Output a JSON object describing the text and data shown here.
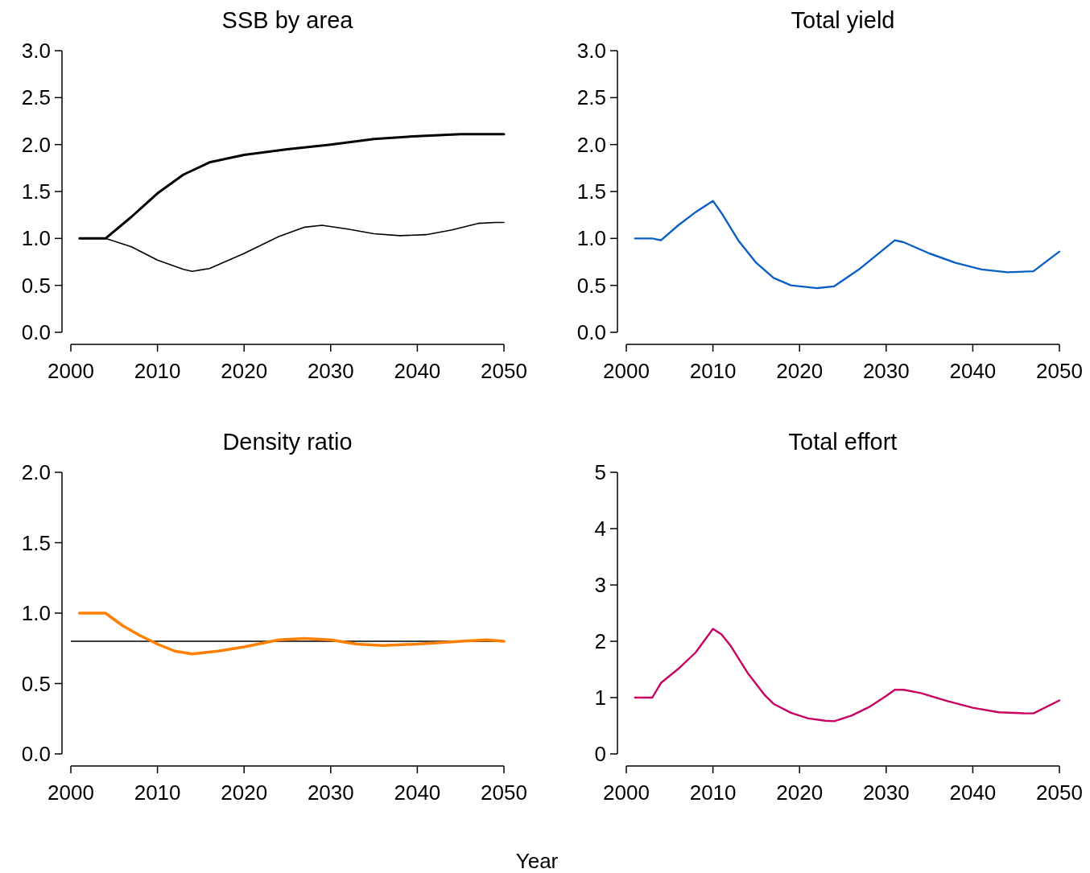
{
  "chart_data": [
    {
      "type": "line",
      "title": "SSB by area",
      "xlim": [
        2000,
        2050
      ],
      "xticks": [
        2000,
        2010,
        2020,
        2030,
        2040,
        2050
      ],
      "ylim": [
        0,
        3
      ],
      "yticks": [
        {
          "value": 0,
          "label": "0.0"
        },
        {
          "value": 0.5,
          "label": "0.5"
        },
        {
          "value": 1,
          "label": "1.0"
        },
        {
          "value": 1.5,
          "label": "1.5"
        },
        {
          "value": 2,
          "label": "2.0"
        },
        {
          "value": 2.5,
          "label": "2.5"
        },
        {
          "value": 3,
          "label": "3.0"
        }
      ],
      "series": [
        {
          "color": "#000000",
          "x": [
            2001,
            2004,
            2007,
            2010,
            2013,
            2016,
            2020,
            2025,
            2030,
            2035,
            2040,
            2045,
            2050
          ],
          "values": [
            1.0,
            1.0,
            1.23,
            1.48,
            1.68,
            1.81,
            1.89,
            1.95,
            2.0,
            2.06,
            2.09,
            2.11,
            2.11
          ]
        },
        {
          "color": "#000000",
          "x": [
            2001,
            2004,
            2007,
            2010,
            2013,
            2014,
            2016,
            2020,
            2024,
            2027,
            2029,
            2032,
            2035,
            2038,
            2041,
            2044,
            2047,
            2049,
            2050
          ],
          "values": [
            1.0,
            1.0,
            0.91,
            0.77,
            0.67,
            0.65,
            0.68,
            0.84,
            1.02,
            1.12,
            1.14,
            1.1,
            1.05,
            1.03,
            1.04,
            1.09,
            1.16,
            1.17,
            1.17
          ]
        }
      ]
    },
    {
      "type": "line",
      "title": "Total yield",
      "xlim": [
        2000,
        2050
      ],
      "xticks": [
        2000,
        2010,
        2020,
        2030,
        2040,
        2050
      ],
      "ylim": [
        0,
        3
      ],
      "yticks": [
        {
          "value": 0,
          "label": "0.0"
        },
        {
          "value": 0.5,
          "label": "0.5"
        },
        {
          "value": 1,
          "label": "1.0"
        },
        {
          "value": 1.5,
          "label": "1.5"
        },
        {
          "value": 2,
          "label": "2.0"
        },
        {
          "value": 2.5,
          "label": "2.5"
        },
        {
          "value": 3,
          "label": "3.0"
        }
      ],
      "series": [
        {
          "color": "#0a5fc4",
          "x": [
            2001,
            2003,
            2004,
            2006,
            2008,
            2010,
            2011,
            2013,
            2015,
            2017,
            2019,
            2022,
            2024,
            2027,
            2031,
            2032,
            2035,
            2038,
            2041,
            2044,
            2047,
            2050
          ],
          "values": [
            1.0,
            1.0,
            0.98,
            1.14,
            1.28,
            1.4,
            1.27,
            0.97,
            0.74,
            0.58,
            0.5,
            0.47,
            0.49,
            0.68,
            0.98,
            0.96,
            0.84,
            0.74,
            0.67,
            0.64,
            0.65,
            0.86
          ]
        }
      ]
    },
    {
      "type": "line",
      "title": "Density ratio",
      "xlim": [
        2000,
        2050
      ],
      "xticks": [
        2000,
        2010,
        2020,
        2030,
        2040,
        2050
      ],
      "ylim": [
        0,
        2
      ],
      "yticks": [
        {
          "value": 0,
          "label": "0.0"
        },
        {
          "value": 0.5,
          "label": "0.5"
        },
        {
          "value": 1,
          "label": "1.0"
        },
        {
          "value": 1.5,
          "label": "1.5"
        },
        {
          "value": 2,
          "label": "2.0"
        }
      ],
      "ref_lines": [
        {
          "axis": "y",
          "value": 0.8,
          "color": "#000000"
        }
      ],
      "series": [
        {
          "color": "#ff7f00",
          "x": [
            2001,
            2004,
            2006,
            2008,
            2010,
            2012,
            2014,
            2017,
            2020,
            2024,
            2027,
            2030,
            2033,
            2036,
            2040,
            2045,
            2048,
            2050
          ],
          "values": [
            1.0,
            1.0,
            0.91,
            0.84,
            0.78,
            0.73,
            0.71,
            0.73,
            0.76,
            0.81,
            0.82,
            0.81,
            0.78,
            0.77,
            0.78,
            0.8,
            0.81,
            0.8
          ]
        }
      ]
    },
    {
      "type": "line",
      "title": "Total effort",
      "xlabel": "Year",
      "xlim": [
        2000,
        2050
      ],
      "xticks": [
        2000,
        2010,
        2020,
        2030,
        2040,
        2050
      ],
      "ylim": [
        0,
        5
      ],
      "yticks": [
        0,
        1,
        2,
        3,
        4,
        5
      ],
      "series": [
        {
          "color": "#c8005f",
          "x": [
            2001,
            2003,
            2004,
            2006,
            2008,
            2009,
            2010,
            2011,
            2012,
            2014,
            2016,
            2017,
            2019,
            2021,
            2023,
            2024,
            2026,
            2028,
            2030,
            2031,
            2032,
            2034,
            2037,
            2040,
            2043,
            2046,
            2047,
            2050
          ],
          "values": [
            1.0,
            1.0,
            1.26,
            1.51,
            1.8,
            2.01,
            2.22,
            2.12,
            1.93,
            1.44,
            1.04,
            0.89,
            0.73,
            0.63,
            0.59,
            0.58,
            0.68,
            0.83,
            1.03,
            1.14,
            1.14,
            1.08,
            0.94,
            0.82,
            0.74,
            0.72,
            0.72,
            0.95
          ]
        }
      ]
    }
  ]
}
